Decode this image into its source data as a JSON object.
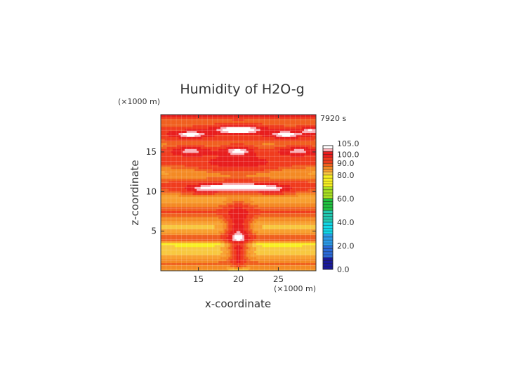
{
  "chart_data": {
    "type": "heatmap",
    "title": "Humidity of H2O-g",
    "time_label": "7920 s",
    "xlabel": "x-coordinate",
    "ylabel": "z-coordinate",
    "x_unit": "(×1000 m)",
    "y_unit": "(×1000 m)",
    "xlim": [
      10.3,
      29.7
    ],
    "ylim": [
      0,
      19.7
    ],
    "x_ticks": [
      15,
      20,
      25
    ],
    "y_ticks": [
      5,
      10,
      15
    ],
    "grid": true,
    "colorbar": {
      "ticks": [
        "0.0",
        "20.0",
        "40.0",
        "60.0",
        "80.0",
        "90.0",
        "100.0",
        "105.0"
      ],
      "levels": [
        0,
        2.5,
        5,
        7.5,
        10,
        12.5,
        15,
        17.5,
        20,
        22.5,
        25,
        27.5,
        30,
        32.5,
        35,
        37.5,
        40,
        42.5,
        45,
        47.5,
        50,
        52.5,
        55,
        57.5,
        60,
        62.5,
        65,
        67.5,
        70,
        72.5,
        75,
        77.5,
        80,
        82.5,
        85,
        87.5,
        90,
        92.5,
        95,
        97.5,
        100,
        102.5,
        105
      ],
      "colors": {
        "dark_blue": "#1a1a9a",
        "blue": "#2a6ad8",
        "cyan": "#10d8e8",
        "teal": "#20c8b0",
        "green": "#20c040",
        "yellow_green": "#a8e020",
        "yellow": "#f8f820",
        "light_orange": "#f8c040",
        "orange": "#f09020",
        "red": "#e82020",
        "pink": "#f8b0b8",
        "white": "#ffffff"
      }
    },
    "field": {
      "x_range": [
        10.3,
        29.7
      ],
      "z_range": [
        0,
        19.7
      ],
      "description_levels_present": [
        80,
        82.5,
        85,
        87.5,
        90,
        95,
        100,
        102.5
      ]
    }
  }
}
